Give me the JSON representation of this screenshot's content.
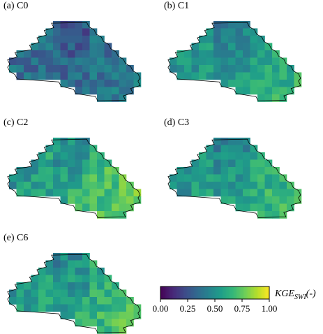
{
  "chart_data": {
    "type": "heatmap",
    "panels": [
      {
        "label": "(a) C0",
        "config": "C0",
        "bias": -0.1,
        "east_boost": 0.02,
        "spread": 0.12
      },
      {
        "label": "(b) C1",
        "config": "C1",
        "bias": 0.04,
        "east_boost": 0.12,
        "spread": 0.1
      },
      {
        "label": "(c) C2",
        "config": "C2",
        "bias": 0.06,
        "east_boost": 0.22,
        "spread": 0.12
      },
      {
        "label": "(d) C3",
        "config": "C3",
        "bias": 0.04,
        "east_boost": 0.16,
        "spread": 0.11
      },
      {
        "label": "(e) C6",
        "config": "C6",
        "bias": 0.05,
        "east_boost": 0.18,
        "spread": 0.12
      }
    ],
    "colorbar": {
      "label_main": "KGE",
      "label_sub": "SWI",
      "label_unit": "(-)",
      "vmin": 0.0,
      "vmax": 1.0,
      "ticks": [
        "0.00",
        "0.25",
        "0.50",
        "0.75",
        "1.00"
      ],
      "colormap": "viridis",
      "colors": [
        "#440154",
        "#482878",
        "#3e4a89",
        "#31688e",
        "#26828e",
        "#1f9e89",
        "#35b779",
        "#6ece58",
        "#b5de2b",
        "#fde725"
      ]
    }
  }
}
